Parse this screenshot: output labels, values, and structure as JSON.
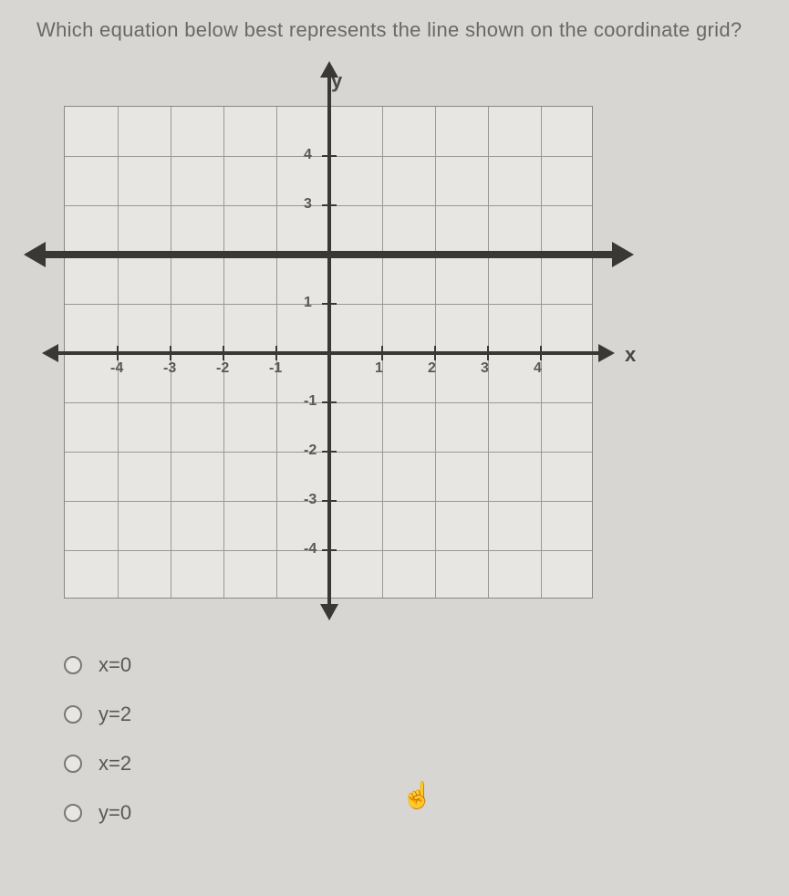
{
  "question": "Which equation below best represents the line shown on the coordinate grid?",
  "graph": {
    "type": "line",
    "x_label": "x",
    "y_label": "y",
    "xlim": [
      -5,
      5
    ],
    "ylim": [
      -5,
      5
    ],
    "grid_step": 1,
    "x_ticks": [
      -4,
      -3,
      -2,
      -1,
      1,
      2,
      3,
      4
    ],
    "y_ticks": [
      -4,
      -3,
      -2,
      -1,
      1,
      3,
      4
    ],
    "plotted_line_y": 2,
    "background_color": "#e8e6e2",
    "grid_color": "#999999",
    "axis_color": "#3a3836",
    "line_color": "#3a3836",
    "line_width": 8
  },
  "options": [
    {
      "label": "x=0"
    },
    {
      "label": "y=2"
    },
    {
      "label": "x=2"
    },
    {
      "label": "y=0"
    }
  ],
  "cursor_glyph": "☝"
}
